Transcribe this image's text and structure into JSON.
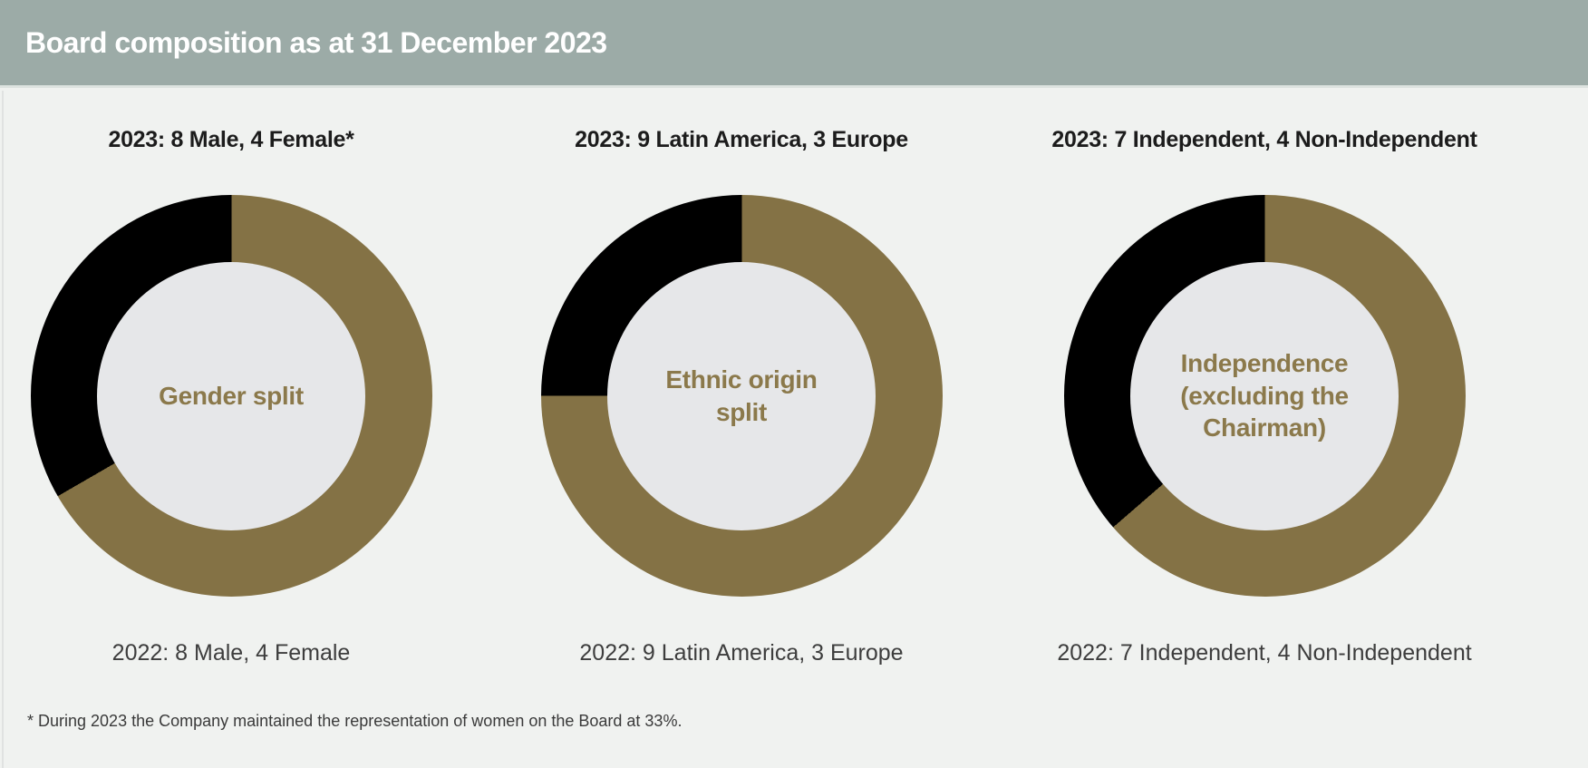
{
  "header": {
    "title": "Board composition as at 31 December 2023",
    "bg": "#9CABA7"
  },
  "colors": {
    "background": "#F0F2F0",
    "hole": "#E6E7E9",
    "gold": "#847245",
    "black": "#000000",
    "center_label": "#8B794B",
    "title_text": "#1C1C1C",
    "subtitle_text": "#3D3D3D",
    "header_text": "#FFFFFF"
  },
  "charts": [
    {
      "title_2023": "2023: 8 Male, 4 Female*",
      "center_label": "Gender split",
      "subtitle_2022": "2022: 8 Male, 4 Female",
      "segments": [
        {
          "label": "Male",
          "value": 8,
          "color_key": "gold"
        },
        {
          "label": "Female",
          "value": 4,
          "color_key": "black"
        }
      ]
    },
    {
      "title_2023": "2023: 9 Latin America, 3 Europe",
      "center_label": "Ethnic origin\nsplit",
      "subtitle_2022": "2022: 9 Latin America, 3 Europe",
      "segments": [
        {
          "label": "Latin America",
          "value": 9,
          "color_key": "gold"
        },
        {
          "label": "Europe",
          "value": 3,
          "color_key": "black"
        }
      ]
    },
    {
      "title_2023": "2023: 7 Independent, 4 Non-Independent",
      "center_label": "Independence\n(excluding the\nChairman)",
      "subtitle_2022": "2022: 7 Independent, 4 Non-Independent",
      "segments": [
        {
          "label": "Independent",
          "value": 7,
          "color_key": "gold"
        },
        {
          "label": "Non-Independent",
          "value": 4,
          "color_key": "black"
        }
      ]
    }
  ],
  "footnote": "* During 2023 the Company maintained the representation of women on the Board at 33%.",
  "chart_data": [
    {
      "type": "pie",
      "donut": true,
      "title": "2023: 8 Male, 4 Female*",
      "center_label": "Gender split",
      "labels": [
        "Male",
        "Female"
      ],
      "values": [
        8,
        4
      ],
      "colors": [
        "#847245",
        "#000000"
      ],
      "start_angle_deg": 0,
      "direction": "clockwise",
      "prior_year_note": "2022: 8 Male, 4 Female"
    },
    {
      "type": "pie",
      "donut": true,
      "title": "2023: 9 Latin America, 3 Europe",
      "center_label": "Ethnic origin split",
      "labels": [
        "Latin America",
        "Europe"
      ],
      "values": [
        9,
        3
      ],
      "colors": [
        "#847245",
        "#000000"
      ],
      "start_angle_deg": 0,
      "direction": "clockwise",
      "prior_year_note": "2022: 9 Latin America, 3 Europe"
    },
    {
      "type": "pie",
      "donut": true,
      "title": "2023: 7 Independent, 4 Non-Independent",
      "center_label": "Independence (excluding the Chairman)",
      "labels": [
        "Independent",
        "Non-Independent"
      ],
      "values": [
        7,
        4
      ],
      "colors": [
        "#847245",
        "#000000"
      ],
      "start_angle_deg": 0,
      "direction": "clockwise",
      "prior_year_note": "2022: 7 Independent, 4 Non-Independent"
    }
  ]
}
